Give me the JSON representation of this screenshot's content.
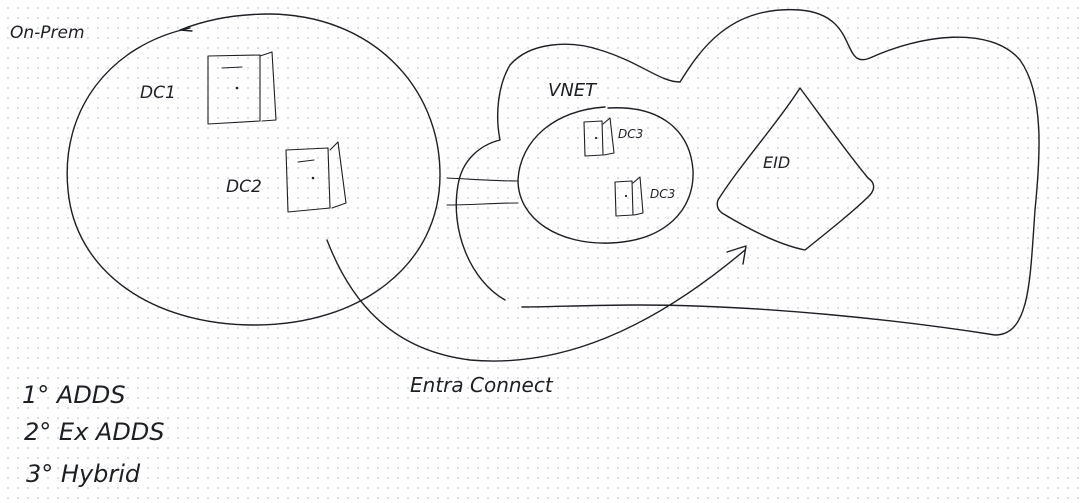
{
  "labels": {
    "on_prem": "On-Prem",
    "dc1": "DC1",
    "dc2": "DC2",
    "vnet": "VNET",
    "dc3_a": "DC3",
    "dc3_b": "DC3",
    "eid": "EID",
    "entra_connect": "Entra Connect"
  },
  "notes": [
    "1° ADDS",
    "2° Ex ADDS",
    "3° Hybrid"
  ]
}
